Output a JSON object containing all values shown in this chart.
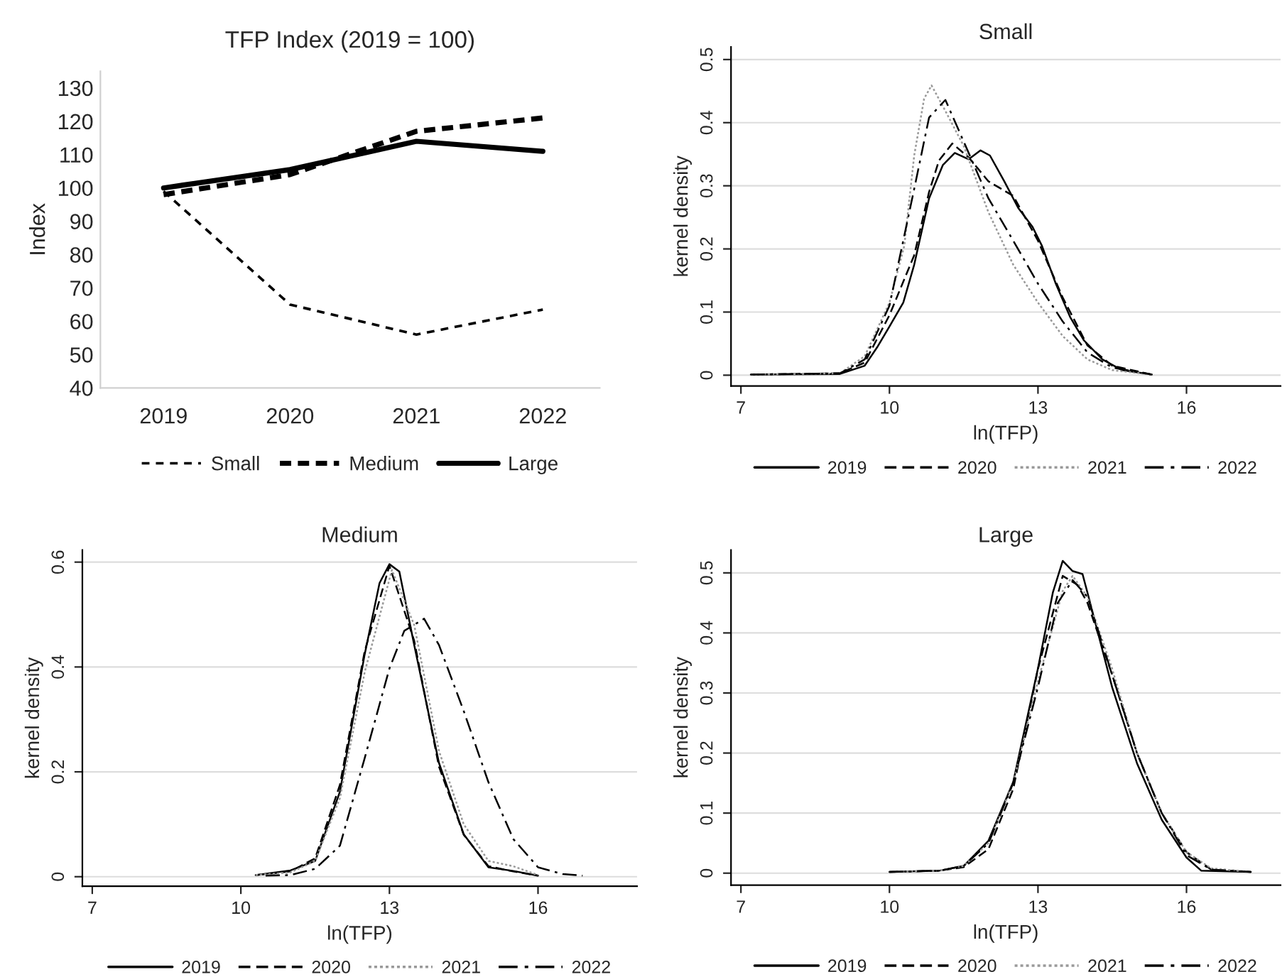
{
  "chart_data": [
    {
      "type": "line",
      "title": "TFP Index (2019 = 100)",
      "ylabel": "Index",
      "categories": [
        "2019",
        "2020",
        "2021",
        "2022"
      ],
      "ylim": [
        40,
        135
      ],
      "yticks": [
        40,
        50,
        60,
        70,
        80,
        90,
        100,
        110,
        120,
        130
      ],
      "legend": "bottom",
      "grid": false,
      "series": [
        {
          "name": "Small",
          "color": "#000000",
          "line_style": "dotted",
          "values": [
            99,
            65,
            56,
            63.5
          ]
        },
        {
          "name": "Medium",
          "color": "#000000",
          "line_style": "dashed",
          "values": [
            98,
            104,
            117,
            121
          ]
        },
        {
          "name": "Large",
          "color": "#000000",
          "line_style": "solid",
          "values": [
            100,
            105.5,
            114,
            111
          ]
        }
      ]
    },
    {
      "type": "line",
      "title": "Small",
      "xlabel": "ln(TFP)",
      "ylabel": "kernel density",
      "xlim": [
        6.8,
        17.9
      ],
      "xticks": [
        7,
        10,
        13,
        16
      ],
      "ylim": [
        -0.017,
        0.52
      ],
      "yticks": [
        0,
        0.1,
        0.2,
        0.3,
        0.4,
        0.5
      ],
      "legend": "bottom",
      "grid": "y",
      "series": [
        {
          "name": "2019",
          "color": "#000000",
          "line_style": "solid",
          "x": [
            7.2,
            9.0,
            9.5,
            9.75,
            10.0,
            10.28,
            10.5,
            10.8,
            11.08,
            11.32,
            11.6,
            11.84,
            12.03,
            12.32,
            12.6,
            12.89,
            13.08,
            13.36,
            13.65,
            13.93,
            14.3,
            14.7,
            15.3
          ],
          "values": [
            0.001,
            0.002,
            0.015,
            0.044,
            0.077,
            0.115,
            0.175,
            0.28,
            0.333,
            0.352,
            0.342,
            0.356,
            0.348,
            0.307,
            0.265,
            0.235,
            0.205,
            0.145,
            0.092,
            0.055,
            0.025,
            0.008,
            0.001
          ]
        },
        {
          "name": "2020",
          "color": "#000000",
          "line_style": "dashed",
          "x": [
            7.2,
            9.0,
            9.5,
            10.0,
            10.5,
            10.8,
            11.0,
            11.27,
            11.6,
            12.0,
            12.5,
            13.0,
            13.5,
            14.0,
            14.5,
            15.3
          ],
          "values": [
            0.001,
            0.003,
            0.02,
            0.095,
            0.19,
            0.29,
            0.34,
            0.367,
            0.345,
            0.307,
            0.284,
            0.213,
            0.123,
            0.047,
            0.015,
            0.001
          ]
        },
        {
          "name": "2021",
          "color": "#999999",
          "line_style": "dotted",
          "x": [
            7.2,
            9.0,
            9.5,
            10.0,
            10.3,
            10.5,
            10.7,
            10.85,
            11.1,
            11.5,
            12.0,
            12.5,
            13.0,
            13.5,
            14.0,
            14.5,
            15.3
          ],
          "values": [
            0.001,
            0.003,
            0.03,
            0.115,
            0.205,
            0.348,
            0.438,
            0.459,
            0.423,
            0.363,
            0.258,
            0.175,
            0.115,
            0.062,
            0.025,
            0.008,
            0.001
          ]
        },
        {
          "name": "2022",
          "color": "#000000",
          "line_style": "dashdot",
          "x": [
            7.2,
            9.0,
            9.5,
            10.0,
            10.5,
            10.8,
            11.13,
            11.5,
            12.0,
            12.5,
            13.0,
            13.5,
            14.0,
            14.5,
            15.3
          ],
          "values": [
            0.001,
            0.003,
            0.025,
            0.11,
            0.295,
            0.408,
            0.436,
            0.37,
            0.28,
            0.213,
            0.145,
            0.085,
            0.036,
            0.012,
            0.001
          ]
        }
      ]
    },
    {
      "type": "line",
      "title": "Medium",
      "xlabel": "ln(TFP)",
      "ylabel": "kernel density",
      "xlim": [
        6.8,
        18.0
      ],
      "xticks": [
        7,
        10,
        13,
        16
      ],
      "ylim": [
        -0.018,
        0.623
      ],
      "yticks": [
        0,
        0.2,
        0.4,
        0.6
      ],
      "legend": "bottom",
      "grid": "y",
      "series": [
        {
          "name": "2019",
          "color": "#000000",
          "line_style": "solid",
          "x": [
            10.3,
            11.0,
            11.5,
            12.0,
            12.5,
            12.8,
            13.0,
            13.2,
            13.5,
            14.0,
            14.5,
            15.0,
            15.5,
            16.0
          ],
          "values": [
            0.003,
            0.012,
            0.03,
            0.162,
            0.424,
            0.56,
            0.596,
            0.582,
            0.442,
            0.217,
            0.081,
            0.018,
            0.011,
            0.002
          ]
        },
        {
          "name": "2020",
          "color": "#000000",
          "line_style": "dashed",
          "x": [
            10.3,
            11.0,
            11.5,
            12.0,
            12.5,
            13.0,
            13.5,
            14.0,
            14.5,
            15.0,
            15.5,
            16.0
          ],
          "values": [
            0.003,
            0.01,
            0.035,
            0.175,
            0.43,
            0.593,
            0.45,
            0.21,
            0.08,
            0.02,
            0.01,
            0.002
          ]
        },
        {
          "name": "2021",
          "color": "#999999",
          "line_style": "dotted",
          "x": [
            10.3,
            11.0,
            11.5,
            12.0,
            12.5,
            13.05,
            13.5,
            14.0,
            14.5,
            15.0,
            15.5,
            16.0
          ],
          "values": [
            0.003,
            0.008,
            0.03,
            0.15,
            0.39,
            0.585,
            0.48,
            0.24,
            0.1,
            0.03,
            0.02,
            0.003
          ]
        },
        {
          "name": "2022",
          "color": "#000000",
          "line_style": "dashdot",
          "x": [
            10.5,
            11.0,
            11.5,
            12.0,
            12.5,
            13.0,
            13.3,
            13.7,
            14.0,
            14.5,
            15.0,
            15.5,
            16.0,
            16.5,
            16.9
          ],
          "values": [
            0.002,
            0.003,
            0.015,
            0.059,
            0.226,
            0.397,
            0.469,
            0.492,
            0.442,
            0.316,
            0.18,
            0.072,
            0.018,
            0.005,
            0.002
          ]
        }
      ]
    },
    {
      "type": "line",
      "title": "Large",
      "xlabel": "ln(TFP)",
      "ylabel": "kernel density",
      "xlim": [
        6.8,
        17.9
      ],
      "xticks": [
        7,
        10,
        13,
        16
      ],
      "ylim": [
        -0.02,
        0.538
      ],
      "yticks": [
        0,
        0.1,
        0.2,
        0.3,
        0.4,
        0.5
      ],
      "legend": "bottom",
      "grid": "y",
      "series": [
        {
          "name": "2019",
          "color": "#000000",
          "line_style": "solid",
          "x": [
            10.0,
            11.0,
            11.5,
            12.0,
            12.5,
            13.0,
            13.3,
            13.5,
            13.7,
            13.9,
            14.0,
            14.5,
            15.0,
            15.5,
            16.0,
            16.3,
            17.3
          ],
          "values": [
            0.002,
            0.004,
            0.012,
            0.054,
            0.152,
            0.341,
            0.467,
            0.52,
            0.503,
            0.498,
            0.467,
            0.309,
            0.183,
            0.089,
            0.026,
            0.004,
            0.002
          ]
        },
        {
          "name": "2020",
          "color": "#000000",
          "line_style": "dashed",
          "x": [
            10.0,
            11.0,
            11.5,
            12.0,
            12.5,
            13.0,
            13.5,
            13.8,
            14.0,
            14.5,
            15.0,
            15.5,
            16.0,
            16.5,
            17.3
          ],
          "values": [
            0.002,
            0.004,
            0.01,
            0.04,
            0.14,
            0.34,
            0.495,
            0.48,
            0.45,
            0.33,
            0.2,
            0.1,
            0.035,
            0.006,
            0.002
          ]
        },
        {
          "name": "2021",
          "color": "#999999",
          "line_style": "dotted",
          "x": [
            10.0,
            11.0,
            11.5,
            12.0,
            12.5,
            13.0,
            13.5,
            13.7,
            14.0,
            14.5,
            15.0,
            15.5,
            16.0,
            16.5,
            17.3
          ],
          "values": [
            0.002,
            0.004,
            0.012,
            0.05,
            0.15,
            0.32,
            0.47,
            0.495,
            0.46,
            0.34,
            0.2,
            0.1,
            0.035,
            0.008,
            0.002
          ]
        },
        {
          "name": "2022",
          "color": "#000000",
          "line_style": "dashdot",
          "x": [
            10.0,
            11.0,
            11.5,
            12.0,
            12.5,
            13.0,
            13.4,
            13.7,
            14.0,
            14.5,
            15.0,
            15.5,
            16.0,
            16.5,
            17.3
          ],
          "values": [
            0.002,
            0.004,
            0.012,
            0.05,
            0.15,
            0.31,
            0.45,
            0.488,
            0.46,
            0.33,
            0.2,
            0.1,
            0.03,
            0.006,
            0.002
          ]
        }
      ]
    }
  ]
}
